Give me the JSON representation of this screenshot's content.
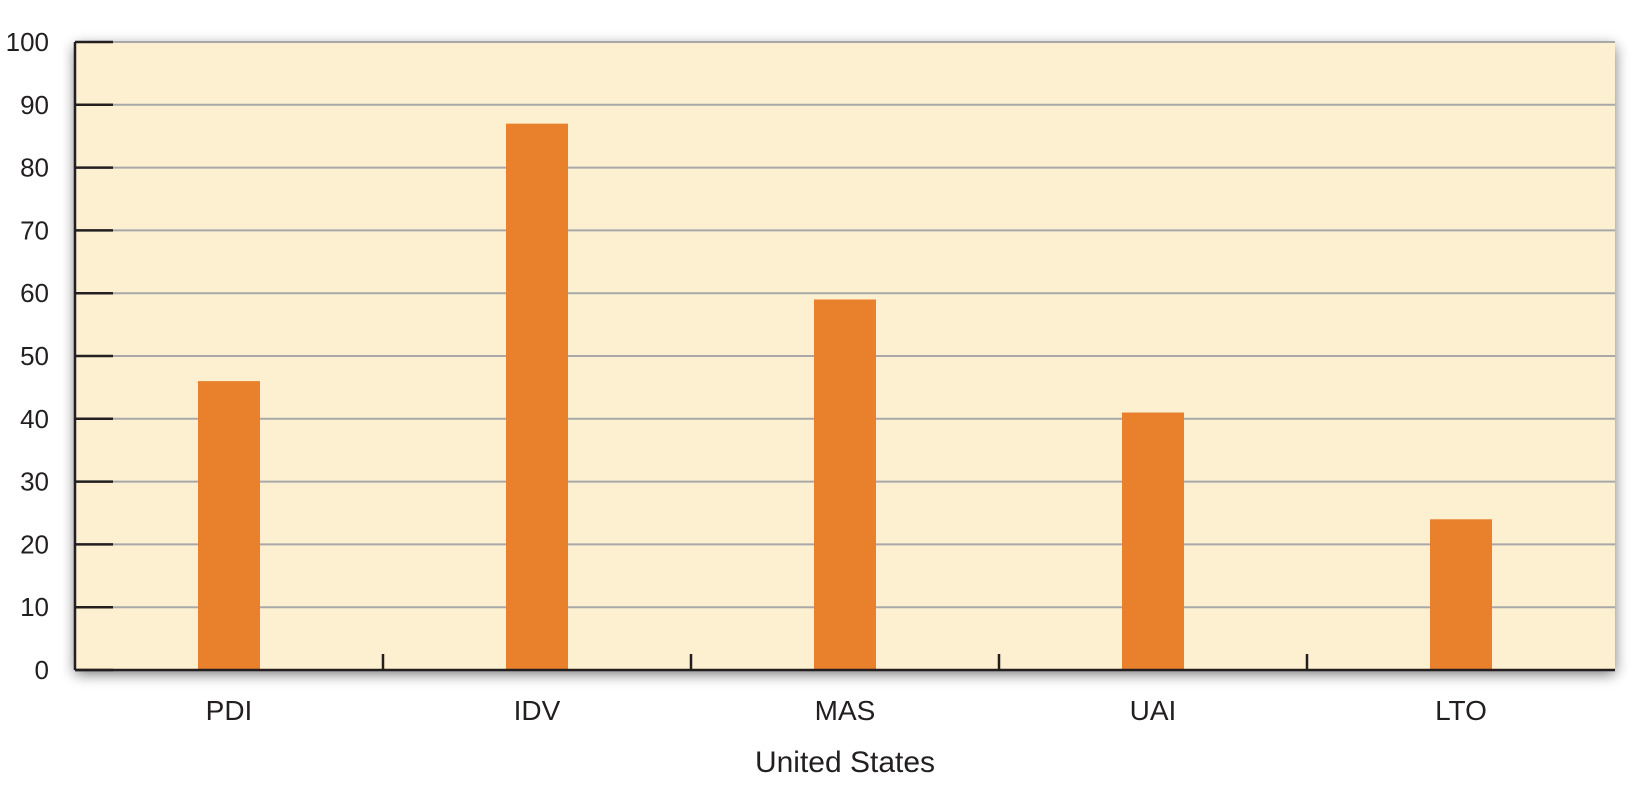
{
  "chart_data": {
    "type": "bar",
    "categories": [
      "PDI",
      "IDV",
      "MAS",
      "UAI",
      "LTO"
    ],
    "values": [
      46,
      87,
      59,
      41,
      24
    ],
    "title": "",
    "xlabel": "United States",
    "ylabel": "",
    "ylim": [
      0,
      100
    ],
    "yticks": [
      0,
      10,
      20,
      30,
      40,
      50,
      60,
      70,
      80,
      90,
      100
    ],
    "grid": true,
    "legend": "none",
    "colors": {
      "bar": "#e8802c",
      "plot_background": "#fdf0d1",
      "gridline": "#a8a8a8",
      "axis": "#231f20"
    }
  }
}
